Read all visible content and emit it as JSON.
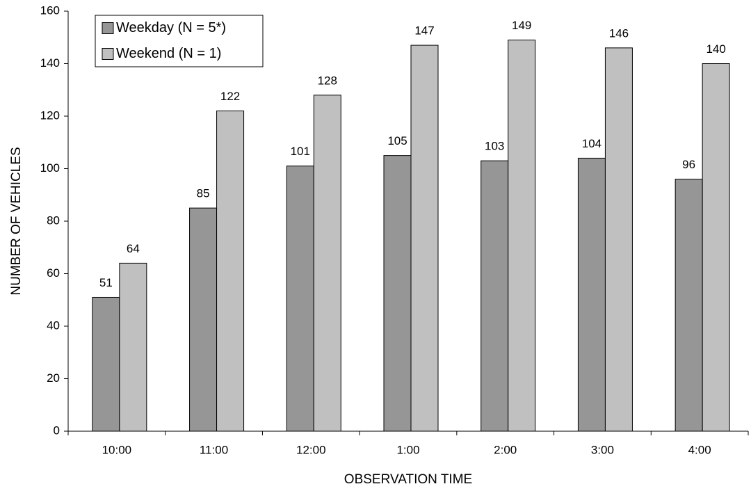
{
  "chart_data": {
    "type": "bar",
    "x_label": "OBSERVATION TIME",
    "y_label": "NUMBER OF VEHICLES",
    "categories": [
      "10:00",
      "11:00",
      "12:00",
      "1:00",
      "2:00",
      "3:00",
      "4:00"
    ],
    "series": [
      {
        "name": "Weekday (N = 5*)",
        "color": "#969696",
        "values": [
          51,
          85,
          101,
          105,
          103,
          104,
          96
        ]
      },
      {
        "name": "Weekend (N = 1)",
        "color": "#c0c0c0",
        "values": [
          64,
          122,
          128,
          147,
          149,
          146,
          140
        ]
      }
    ],
    "ylim": [
      0,
      160
    ],
    "yticks": [
      0,
      20,
      40,
      60,
      80,
      100,
      120,
      140,
      160
    ],
    "grid": false,
    "legend": "upper left"
  }
}
